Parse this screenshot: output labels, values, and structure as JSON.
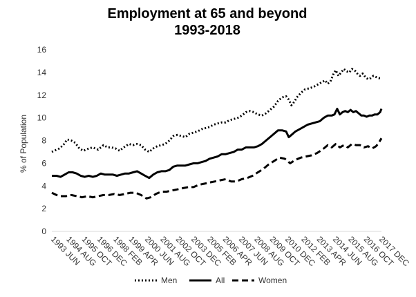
{
  "chart_data": {
    "type": "line",
    "title": "Employment  at 65 and beyond",
    "subtitle": "1993-2018",
    "ylabel": "% of Population",
    "xlabel": "",
    "ylim": [
      0,
      16
    ],
    "yticks": [
      0,
      2,
      4,
      6,
      8,
      10,
      12,
      14,
      16
    ],
    "xlim": [
      1993.45,
      2018.0
    ],
    "grid": false,
    "legend": "bottom",
    "x_tick_labels": [
      {
        "label": "1993 JUN",
        "x": 1993.45
      },
      {
        "label": "1994 AUG",
        "x": 1994.6
      },
      {
        "label": "1995 OCT",
        "x": 1995.75
      },
      {
        "label": "1996 DEC",
        "x": 1996.9
      },
      {
        "label": "1998 FEB",
        "x": 1998.1
      },
      {
        "label": "1999 APR",
        "x": 1999.25
      },
      {
        "label": "2000 JUN",
        "x": 2000.45
      },
      {
        "label": "2001 AUG",
        "x": 2001.6
      },
      {
        "label": "2002 OCT",
        "x": 2002.75
      },
      {
        "label": "2003 DEC",
        "x": 2003.9
      },
      {
        "label": "2005 FEB",
        "x": 2005.1
      },
      {
        "label": "2006 APR",
        "x": 2006.25
      },
      {
        "label": "2007 JUN",
        "x": 2007.45
      },
      {
        "label": "2008 AUG",
        "x": 2008.6
      },
      {
        "label": "2009 OCT",
        "x": 2009.75
      },
      {
        "label": "2010 DEC",
        "x": 2010.9
      },
      {
        "label": "2012 FEB",
        "x": 2012.1
      },
      {
        "label": "2013 APR",
        "x": 2013.25
      },
      {
        "label": "2014 JUN",
        "x": 2014.45
      },
      {
        "label": "2015 AUG",
        "x": 2015.6
      },
      {
        "label": "2016 OCT",
        "x": 2016.75
      },
      {
        "label": "2017 DEC",
        "x": 2017.9
      }
    ],
    "series": [
      {
        "name": "Men",
        "style": "dotted",
        "color": "#000000",
        "points": [
          [
            1993.45,
            7.0
          ],
          [
            1994.0,
            7.3
          ],
          [
            1994.3,
            7.6
          ],
          [
            1994.6,
            8.1
          ],
          [
            1994.9,
            8.0
          ],
          [
            1995.2,
            7.8
          ],
          [
            1995.5,
            7.3
          ],
          [
            1995.8,
            7.1
          ],
          [
            1996.2,
            7.3
          ],
          [
            1996.5,
            7.4
          ],
          [
            1996.9,
            7.2
          ],
          [
            1997.3,
            7.6
          ],
          [
            1997.6,
            7.4
          ],
          [
            1997.9,
            7.4
          ],
          [
            1998.2,
            7.3
          ],
          [
            1998.5,
            7.1
          ],
          [
            1998.8,
            7.4
          ],
          [
            1999.2,
            7.7
          ],
          [
            1999.5,
            7.6
          ],
          [
            1999.8,
            7.7
          ],
          [
            2000.1,
            7.6
          ],
          [
            2000.4,
            7.2
          ],
          [
            2000.7,
            7.0
          ],
          [
            2001.0,
            7.3
          ],
          [
            2001.3,
            7.5
          ],
          [
            2001.6,
            7.6
          ],
          [
            2001.9,
            7.7
          ],
          [
            2002.2,
            8.0
          ],
          [
            2002.5,
            8.4
          ],
          [
            2002.8,
            8.5
          ],
          [
            2003.1,
            8.4
          ],
          [
            2003.4,
            8.3
          ],
          [
            2003.7,
            8.6
          ],
          [
            2004.0,
            8.7
          ],
          [
            2004.3,
            8.8
          ],
          [
            2004.6,
            9.0
          ],
          [
            2004.9,
            9.1
          ],
          [
            2005.2,
            9.2
          ],
          [
            2005.5,
            9.4
          ],
          [
            2005.8,
            9.5
          ],
          [
            2006.1,
            9.6
          ],
          [
            2006.4,
            9.6
          ],
          [
            2006.7,
            9.8
          ],
          [
            2007.0,
            9.9
          ],
          [
            2007.3,
            10.0
          ],
          [
            2007.6,
            10.2
          ],
          [
            2007.9,
            10.5
          ],
          [
            2008.2,
            10.6
          ],
          [
            2008.5,
            10.5
          ],
          [
            2008.8,
            10.3
          ],
          [
            2009.1,
            10.2
          ],
          [
            2009.4,
            10.4
          ],
          [
            2009.7,
            10.7
          ],
          [
            2010.0,
            11.0
          ],
          [
            2010.3,
            11.5
          ],
          [
            2010.6,
            11.8
          ],
          [
            2010.9,
            11.9
          ],
          [
            2011.1,
            11.6
          ],
          [
            2011.3,
            11.1
          ],
          [
            2011.5,
            11.4
          ],
          [
            2011.7,
            11.8
          ],
          [
            2012.0,
            12.2
          ],
          [
            2012.3,
            12.5
          ],
          [
            2012.6,
            12.6
          ],
          [
            2012.9,
            12.7
          ],
          [
            2013.2,
            12.9
          ],
          [
            2013.5,
            13.1
          ],
          [
            2013.8,
            13.3
          ],
          [
            2014.0,
            13.0
          ],
          [
            2014.2,
            13.2
          ],
          [
            2014.4,
            13.8
          ],
          [
            2014.6,
            14.2
          ],
          [
            2014.8,
            13.7
          ],
          [
            2015.0,
            14.0
          ],
          [
            2015.2,
            14.3
          ],
          [
            2015.4,
            14.1
          ],
          [
            2015.6,
            14.0
          ],
          [
            2015.8,
            14.3
          ],
          [
            2016.0,
            14.2
          ],
          [
            2016.2,
            13.9
          ],
          [
            2016.4,
            13.7
          ],
          [
            2016.6,
            13.9
          ],
          [
            2016.8,
            13.6
          ],
          [
            2017.0,
            13.4
          ],
          [
            2017.2,
            13.5
          ],
          [
            2017.4,
            13.7
          ],
          [
            2017.6,
            13.6
          ],
          [
            2017.8,
            13.5
          ],
          [
            2018.0,
            13.5
          ]
        ]
      },
      {
        "name": "All",
        "style": "solid",
        "color": "#000000",
        "points": [
          [
            1993.45,
            4.9
          ],
          [
            1993.8,
            4.9
          ],
          [
            1994.1,
            4.8
          ],
          [
            1994.4,
            5.0
          ],
          [
            1994.7,
            5.2
          ],
          [
            1995.0,
            5.2
          ],
          [
            1995.3,
            5.1
          ],
          [
            1995.6,
            4.9
          ],
          [
            1995.9,
            4.8
          ],
          [
            1996.2,
            4.9
          ],
          [
            1996.5,
            4.8
          ],
          [
            1996.8,
            4.9
          ],
          [
            1997.1,
            5.1
          ],
          [
            1997.4,
            5.0
          ],
          [
            1997.7,
            5.0
          ],
          [
            1998.0,
            5.0
          ],
          [
            1998.3,
            4.9
          ],
          [
            1998.6,
            5.0
          ],
          [
            1998.9,
            5.1
          ],
          [
            1999.2,
            5.1
          ],
          [
            1999.5,
            5.2
          ],
          [
            1999.8,
            5.3
          ],
          [
            2000.1,
            5.1
          ],
          [
            2000.4,
            4.9
          ],
          [
            2000.7,
            4.7
          ],
          [
            2001.0,
            5.0
          ],
          [
            2001.3,
            5.2
          ],
          [
            2001.6,
            5.3
          ],
          [
            2001.9,
            5.3
          ],
          [
            2002.2,
            5.4
          ],
          [
            2002.5,
            5.7
          ],
          [
            2002.8,
            5.8
          ],
          [
            2003.1,
            5.8
          ],
          [
            2003.4,
            5.8
          ],
          [
            2003.7,
            5.9
          ],
          [
            2004.0,
            6.0
          ],
          [
            2004.3,
            6.0
          ],
          [
            2004.6,
            6.1
          ],
          [
            2004.9,
            6.2
          ],
          [
            2005.2,
            6.4
          ],
          [
            2005.5,
            6.5
          ],
          [
            2005.8,
            6.6
          ],
          [
            2006.1,
            6.8
          ],
          [
            2006.4,
            6.8
          ],
          [
            2006.7,
            6.9
          ],
          [
            2007.0,
            7.0
          ],
          [
            2007.3,
            7.2
          ],
          [
            2007.6,
            7.2
          ],
          [
            2007.9,
            7.4
          ],
          [
            2008.2,
            7.4
          ],
          [
            2008.5,
            7.4
          ],
          [
            2008.8,
            7.5
          ],
          [
            2009.1,
            7.7
          ],
          [
            2009.4,
            8.0
          ],
          [
            2009.7,
            8.3
          ],
          [
            2010.0,
            8.6
          ],
          [
            2010.3,
            8.9
          ],
          [
            2010.6,
            8.9
          ],
          [
            2010.9,
            8.8
          ],
          [
            2011.1,
            8.3
          ],
          [
            2011.3,
            8.5
          ],
          [
            2011.6,
            8.8
          ],
          [
            2011.9,
            9.0
          ],
          [
            2012.2,
            9.2
          ],
          [
            2012.5,
            9.4
          ],
          [
            2012.8,
            9.5
          ],
          [
            2013.1,
            9.6
          ],
          [
            2013.4,
            9.7
          ],
          [
            2013.7,
            10.0
          ],
          [
            2014.0,
            10.2
          ],
          [
            2014.3,
            10.2
          ],
          [
            2014.5,
            10.3
          ],
          [
            2014.7,
            10.8
          ],
          [
            2014.9,
            10.3
          ],
          [
            2015.1,
            10.5
          ],
          [
            2015.3,
            10.6
          ],
          [
            2015.5,
            10.5
          ],
          [
            2015.7,
            10.7
          ],
          [
            2015.9,
            10.5
          ],
          [
            2016.1,
            10.6
          ],
          [
            2016.3,
            10.4
          ],
          [
            2016.5,
            10.2
          ],
          [
            2016.7,
            10.2
          ],
          [
            2016.9,
            10.1
          ],
          [
            2017.1,
            10.2
          ],
          [
            2017.3,
            10.2
          ],
          [
            2017.5,
            10.3
          ],
          [
            2017.7,
            10.3
          ],
          [
            2017.9,
            10.5
          ],
          [
            2018.0,
            10.8
          ]
        ]
      },
      {
        "name": "Women",
        "style": "dashed",
        "color": "#000000",
        "points": [
          [
            1993.45,
            3.4
          ],
          [
            1993.8,
            3.2
          ],
          [
            1994.1,
            3.1
          ],
          [
            1994.5,
            3.1
          ],
          [
            1994.9,
            3.2
          ],
          [
            1995.3,
            3.1
          ],
          [
            1995.7,
            3.0
          ],
          [
            1996.1,
            3.1
          ],
          [
            1996.5,
            3.0
          ],
          [
            1996.9,
            3.1
          ],
          [
            1997.3,
            3.2
          ],
          [
            1997.7,
            3.2
          ],
          [
            1998.1,
            3.3
          ],
          [
            1998.5,
            3.2
          ],
          [
            1998.9,
            3.3
          ],
          [
            1999.3,
            3.4
          ],
          [
            1999.7,
            3.4
          ],
          [
            2000.1,
            3.2
          ],
          [
            2000.5,
            2.9
          ],
          [
            2000.8,
            3.0
          ],
          [
            2001.2,
            3.3
          ],
          [
            2001.6,
            3.5
          ],
          [
            2002.0,
            3.5
          ],
          [
            2002.4,
            3.6
          ],
          [
            2002.8,
            3.7
          ],
          [
            2003.2,
            3.8
          ],
          [
            2003.6,
            3.9
          ],
          [
            2004.0,
            3.9
          ],
          [
            2004.4,
            4.1
          ],
          [
            2004.8,
            4.2
          ],
          [
            2005.2,
            4.3
          ],
          [
            2005.6,
            4.4
          ],
          [
            2006.0,
            4.5
          ],
          [
            2006.4,
            4.6
          ],
          [
            2006.8,
            4.4
          ],
          [
            2007.2,
            4.4
          ],
          [
            2007.6,
            4.6
          ],
          [
            2008.0,
            4.7
          ],
          [
            2008.4,
            4.9
          ],
          [
            2008.8,
            5.2
          ],
          [
            2009.2,
            5.5
          ],
          [
            2009.6,
            5.9
          ],
          [
            2010.0,
            6.2
          ],
          [
            2010.4,
            6.5
          ],
          [
            2010.8,
            6.4
          ],
          [
            2011.2,
            6.0
          ],
          [
            2011.6,
            6.3
          ],
          [
            2012.0,
            6.5
          ],
          [
            2012.4,
            6.6
          ],
          [
            2012.8,
            6.7
          ],
          [
            2013.2,
            6.9
          ],
          [
            2013.6,
            7.2
          ],
          [
            2014.0,
            7.6
          ],
          [
            2014.3,
            7.4
          ],
          [
            2014.6,
            7.7
          ],
          [
            2014.9,
            7.4
          ],
          [
            2015.2,
            7.6
          ],
          [
            2015.5,
            7.4
          ],
          [
            2015.8,
            7.7
          ],
          [
            2016.1,
            7.6
          ],
          [
            2016.4,
            7.6
          ],
          [
            2016.7,
            7.4
          ],
          [
            2017.0,
            7.5
          ],
          [
            2017.3,
            7.3
          ],
          [
            2017.6,
            7.5
          ],
          [
            2017.8,
            7.8
          ],
          [
            2018.0,
            8.2
          ]
        ]
      }
    ]
  }
}
